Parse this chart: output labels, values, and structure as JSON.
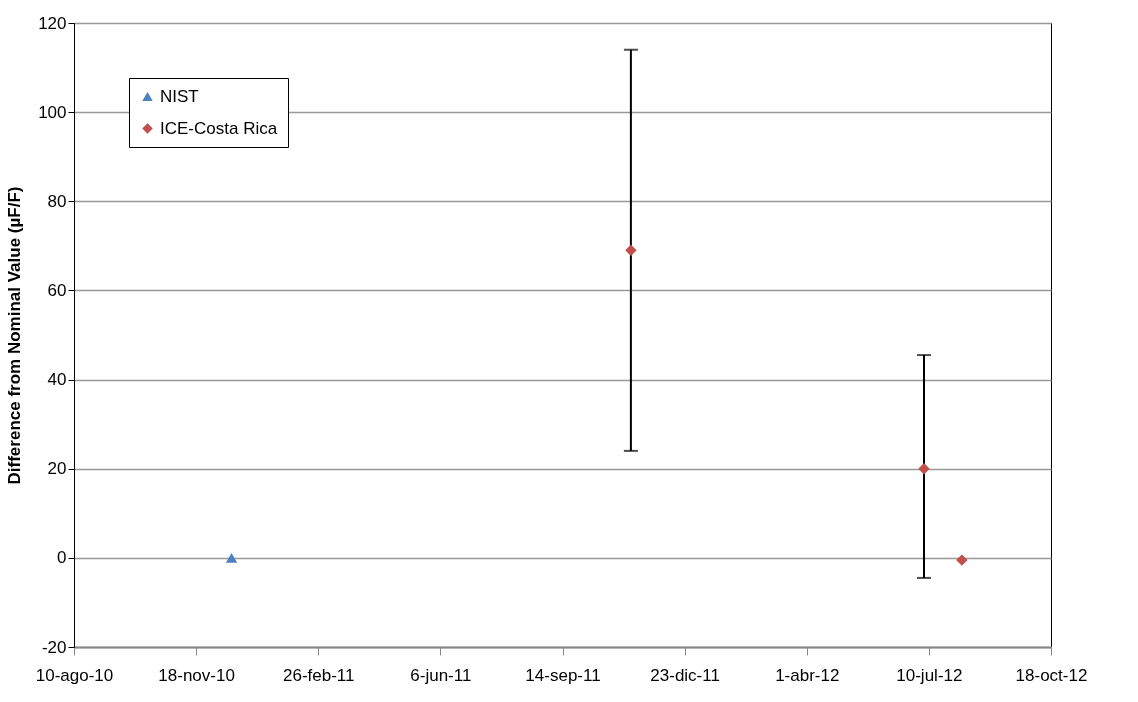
{
  "chart_data": {
    "type": "scatter",
    "ylabel": "Difference from Nominal Value (µF/F)",
    "xlim": [
      "2010-08-10",
      "2012-10-18"
    ],
    "xticks": [
      {
        "value": "2010-08-10",
        "label": "10-ago-10"
      },
      {
        "value": "2010-11-18",
        "label": "18-nov-10"
      },
      {
        "value": "2011-02-26",
        "label": "26-feb-11"
      },
      {
        "value": "2011-06-06",
        "label": "6-jun-11"
      },
      {
        "value": "2011-09-14",
        "label": "14-sep-11"
      },
      {
        "value": "2011-12-23",
        "label": "23-dic-11"
      },
      {
        "value": "2012-04-01",
        "label": "1-abr-12"
      },
      {
        "value": "2012-07-10",
        "label": "10-jul-12"
      },
      {
        "value": "2012-10-18",
        "label": "18-oct-12"
      }
    ],
    "ylim": [
      -20,
      120
    ],
    "yticks": [
      -20,
      0,
      20,
      40,
      60,
      80,
      100,
      120
    ],
    "grid": "y",
    "legend": "top left",
    "series": [
      {
        "name": "NIST",
        "color": "#4f81bd",
        "marker": "triangle",
        "x": [
          "2010-12-17"
        ],
        "values": [
          0
        ]
      },
      {
        "name": "ICE-Costa Rica",
        "color": "#c0504d",
        "marker": "diamond",
        "x": [
          "2011-11-09",
          "2012-07-06",
          "2012-08-06"
        ],
        "values": [
          69,
          20,
          -0.5
        ],
        "errors": [
          [
            24,
            114
          ],
          [
            -4.5,
            45.5
          ],
          null
        ]
      }
    ]
  }
}
